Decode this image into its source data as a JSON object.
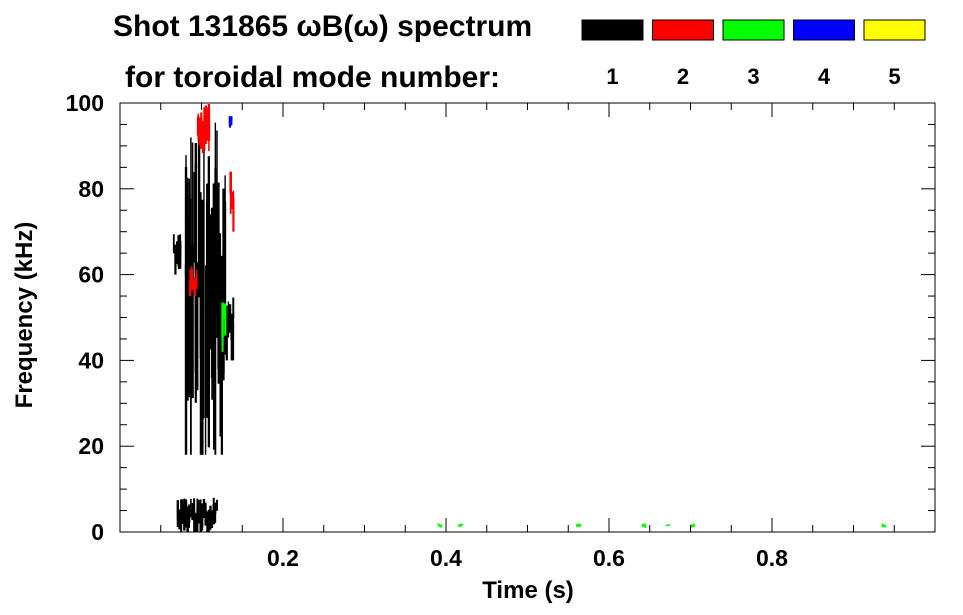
{
  "chart_data": {
    "type": "heatmap",
    "title": "Shot 131865 ωB(ω) spectrum",
    "subtitle": "for toroidal mode number:",
    "xlabel": "Time (s)",
    "ylabel": "Frequency (kHz)",
    "xlim": [
      0,
      1.0
    ],
    "ylim": [
      0,
      100
    ],
    "x_ticks": [
      {
        "value": 0.2,
        "label": "0.2"
      },
      {
        "value": 0.4,
        "label": "0.4"
      },
      {
        "value": 0.6,
        "label": "0.6"
      },
      {
        "value": 0.8,
        "label": "0.8"
      }
    ],
    "y_ticks": [
      {
        "value": 0,
        "label": "0"
      },
      {
        "value": 20,
        "label": "20"
      },
      {
        "value": 40,
        "label": "40"
      },
      {
        "value": 60,
        "label": "60"
      },
      {
        "value": 80,
        "label": "80"
      },
      {
        "value": 100,
        "label": "100"
      }
    ],
    "legend_placement": "top-right",
    "series": [
      {
        "name": "1",
        "color": "#000000",
        "blobs": [
          {
            "t0": 0.08,
            "t1": 0.13,
            "f0": 18,
            "f1": 98
          },
          {
            "t0": 0.065,
            "t1": 0.075,
            "f0": 60,
            "f1": 70
          },
          {
            "t0": 0.07,
            "t1": 0.12,
            "f0": 0,
            "f1": 8
          },
          {
            "t0": 0.13,
            "t1": 0.14,
            "f0": 40,
            "f1": 55
          }
        ]
      },
      {
        "name": "2",
        "color": "#ff0000",
        "blobs": [
          {
            "t0": 0.095,
            "t1": 0.11,
            "f0": 88,
            "f1": 100
          },
          {
            "t0": 0.135,
            "t1": 0.14,
            "f0": 70,
            "f1": 85
          },
          {
            "t0": 0.085,
            "t1": 0.095,
            "f0": 55,
            "f1": 62
          }
        ]
      },
      {
        "name": "3",
        "color": "#00ff00",
        "blobs": [
          {
            "t0": 0.125,
            "t1": 0.13,
            "f0": 42,
            "f1": 55
          },
          {
            "t0": 0.39,
            "t1": 0.395,
            "f0": 1,
            "f1": 2
          },
          {
            "t0": 0.415,
            "t1": 0.42,
            "f0": 1,
            "f1": 2
          },
          {
            "t0": 0.56,
            "t1": 0.565,
            "f0": 1,
            "f1": 2
          },
          {
            "t0": 0.64,
            "t1": 0.645,
            "f0": 1,
            "f1": 2
          },
          {
            "t0": 0.67,
            "t1": 0.675,
            "f0": 1,
            "f1": 2
          },
          {
            "t0": 0.7,
            "t1": 0.705,
            "f0": 1,
            "f1": 2
          },
          {
            "t0": 0.935,
            "t1": 0.94,
            "f0": 1,
            "f1": 2
          }
        ]
      },
      {
        "name": "4",
        "color": "#0000ff",
        "blobs": [
          {
            "t0": 0.134,
            "t1": 0.138,
            "f0": 94,
            "f1": 97
          }
        ]
      },
      {
        "name": "5",
        "color": "#ffff00",
        "blobs": []
      }
    ]
  }
}
